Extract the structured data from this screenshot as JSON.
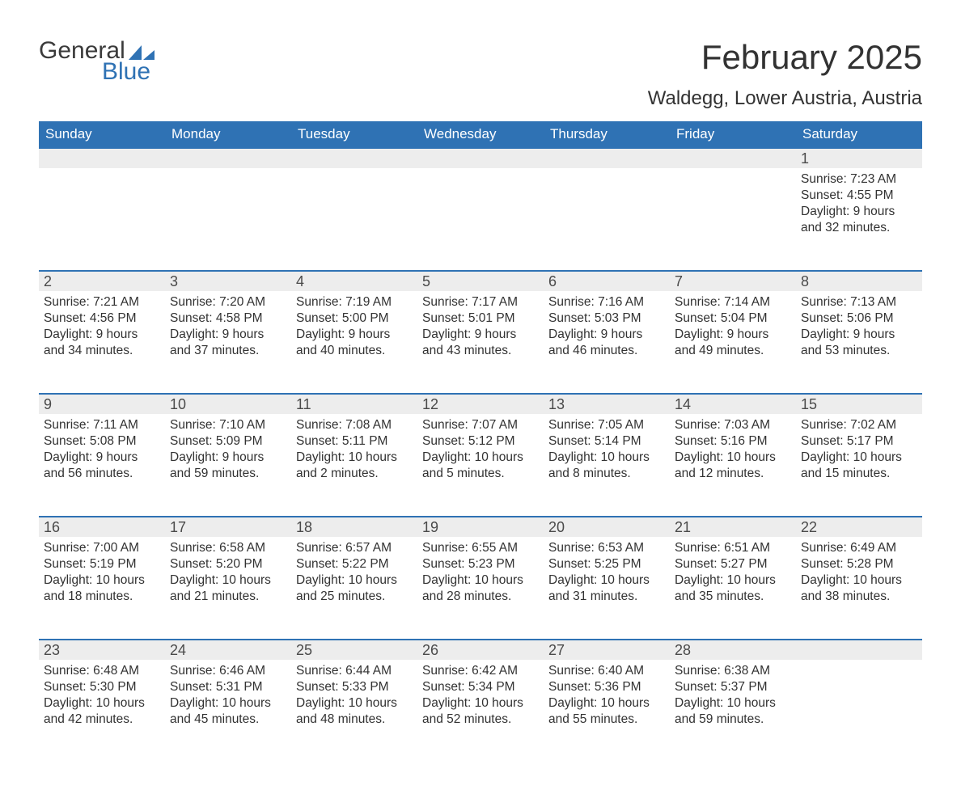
{
  "logo": {
    "word1": "General",
    "word2": "Blue",
    "accent_color": "#2f72b4"
  },
  "header": {
    "month_title": "February 2025",
    "location": "Waldegg, Lower Austria, Austria"
  },
  "colors": {
    "header_bg": "#2f72b4",
    "header_text": "#ffffff",
    "daynum_bg": "#ededed",
    "daynum_border": "#2f72b4",
    "body_text": "#323232"
  },
  "weekdays": [
    "Sunday",
    "Monday",
    "Tuesday",
    "Wednesday",
    "Thursday",
    "Friday",
    "Saturday"
  ],
  "weeks": [
    [
      null,
      null,
      null,
      null,
      null,
      null,
      {
        "day": "1",
        "sunrise": "Sunrise: 7:23 AM",
        "sunset": "Sunset: 4:55 PM",
        "daylight1": "Daylight: 9 hours",
        "daylight2": "and 32 minutes."
      }
    ],
    [
      {
        "day": "2",
        "sunrise": "Sunrise: 7:21 AM",
        "sunset": "Sunset: 4:56 PM",
        "daylight1": "Daylight: 9 hours",
        "daylight2": "and 34 minutes."
      },
      {
        "day": "3",
        "sunrise": "Sunrise: 7:20 AM",
        "sunset": "Sunset: 4:58 PM",
        "daylight1": "Daylight: 9 hours",
        "daylight2": "and 37 minutes."
      },
      {
        "day": "4",
        "sunrise": "Sunrise: 7:19 AM",
        "sunset": "Sunset: 5:00 PM",
        "daylight1": "Daylight: 9 hours",
        "daylight2": "and 40 minutes."
      },
      {
        "day": "5",
        "sunrise": "Sunrise: 7:17 AM",
        "sunset": "Sunset: 5:01 PM",
        "daylight1": "Daylight: 9 hours",
        "daylight2": "and 43 minutes."
      },
      {
        "day": "6",
        "sunrise": "Sunrise: 7:16 AM",
        "sunset": "Sunset: 5:03 PM",
        "daylight1": "Daylight: 9 hours",
        "daylight2": "and 46 minutes."
      },
      {
        "day": "7",
        "sunrise": "Sunrise: 7:14 AM",
        "sunset": "Sunset: 5:04 PM",
        "daylight1": "Daylight: 9 hours",
        "daylight2": "and 49 minutes."
      },
      {
        "day": "8",
        "sunrise": "Sunrise: 7:13 AM",
        "sunset": "Sunset: 5:06 PM",
        "daylight1": "Daylight: 9 hours",
        "daylight2": "and 53 minutes."
      }
    ],
    [
      {
        "day": "9",
        "sunrise": "Sunrise: 7:11 AM",
        "sunset": "Sunset: 5:08 PM",
        "daylight1": "Daylight: 9 hours",
        "daylight2": "and 56 minutes."
      },
      {
        "day": "10",
        "sunrise": "Sunrise: 7:10 AM",
        "sunset": "Sunset: 5:09 PM",
        "daylight1": "Daylight: 9 hours",
        "daylight2": "and 59 minutes."
      },
      {
        "day": "11",
        "sunrise": "Sunrise: 7:08 AM",
        "sunset": "Sunset: 5:11 PM",
        "daylight1": "Daylight: 10 hours",
        "daylight2": "and 2 minutes."
      },
      {
        "day": "12",
        "sunrise": "Sunrise: 7:07 AM",
        "sunset": "Sunset: 5:12 PM",
        "daylight1": "Daylight: 10 hours",
        "daylight2": "and 5 minutes."
      },
      {
        "day": "13",
        "sunrise": "Sunrise: 7:05 AM",
        "sunset": "Sunset: 5:14 PM",
        "daylight1": "Daylight: 10 hours",
        "daylight2": "and 8 minutes."
      },
      {
        "day": "14",
        "sunrise": "Sunrise: 7:03 AM",
        "sunset": "Sunset: 5:16 PM",
        "daylight1": "Daylight: 10 hours",
        "daylight2": "and 12 minutes."
      },
      {
        "day": "15",
        "sunrise": "Sunrise: 7:02 AM",
        "sunset": "Sunset: 5:17 PM",
        "daylight1": "Daylight: 10 hours",
        "daylight2": "and 15 minutes."
      }
    ],
    [
      {
        "day": "16",
        "sunrise": "Sunrise: 7:00 AM",
        "sunset": "Sunset: 5:19 PM",
        "daylight1": "Daylight: 10 hours",
        "daylight2": "and 18 minutes."
      },
      {
        "day": "17",
        "sunrise": "Sunrise: 6:58 AM",
        "sunset": "Sunset: 5:20 PM",
        "daylight1": "Daylight: 10 hours",
        "daylight2": "and 21 minutes."
      },
      {
        "day": "18",
        "sunrise": "Sunrise: 6:57 AM",
        "sunset": "Sunset: 5:22 PM",
        "daylight1": "Daylight: 10 hours",
        "daylight2": "and 25 minutes."
      },
      {
        "day": "19",
        "sunrise": "Sunrise: 6:55 AM",
        "sunset": "Sunset: 5:23 PM",
        "daylight1": "Daylight: 10 hours",
        "daylight2": "and 28 minutes."
      },
      {
        "day": "20",
        "sunrise": "Sunrise: 6:53 AM",
        "sunset": "Sunset: 5:25 PM",
        "daylight1": "Daylight: 10 hours",
        "daylight2": "and 31 minutes."
      },
      {
        "day": "21",
        "sunrise": "Sunrise: 6:51 AM",
        "sunset": "Sunset: 5:27 PM",
        "daylight1": "Daylight: 10 hours",
        "daylight2": "and 35 minutes."
      },
      {
        "day": "22",
        "sunrise": "Sunrise: 6:49 AM",
        "sunset": "Sunset: 5:28 PM",
        "daylight1": "Daylight: 10 hours",
        "daylight2": "and 38 minutes."
      }
    ],
    [
      {
        "day": "23",
        "sunrise": "Sunrise: 6:48 AM",
        "sunset": "Sunset: 5:30 PM",
        "daylight1": "Daylight: 10 hours",
        "daylight2": "and 42 minutes."
      },
      {
        "day": "24",
        "sunrise": "Sunrise: 6:46 AM",
        "sunset": "Sunset: 5:31 PM",
        "daylight1": "Daylight: 10 hours",
        "daylight2": "and 45 minutes."
      },
      {
        "day": "25",
        "sunrise": "Sunrise: 6:44 AM",
        "sunset": "Sunset: 5:33 PM",
        "daylight1": "Daylight: 10 hours",
        "daylight2": "and 48 minutes."
      },
      {
        "day": "26",
        "sunrise": "Sunrise: 6:42 AM",
        "sunset": "Sunset: 5:34 PM",
        "daylight1": "Daylight: 10 hours",
        "daylight2": "and 52 minutes."
      },
      {
        "day": "27",
        "sunrise": "Sunrise: 6:40 AM",
        "sunset": "Sunset: 5:36 PM",
        "daylight1": "Daylight: 10 hours",
        "daylight2": "and 55 minutes."
      },
      {
        "day": "28",
        "sunrise": "Sunrise: 6:38 AM",
        "sunset": "Sunset: 5:37 PM",
        "daylight1": "Daylight: 10 hours",
        "daylight2": "and 59 minutes."
      },
      null
    ]
  ]
}
